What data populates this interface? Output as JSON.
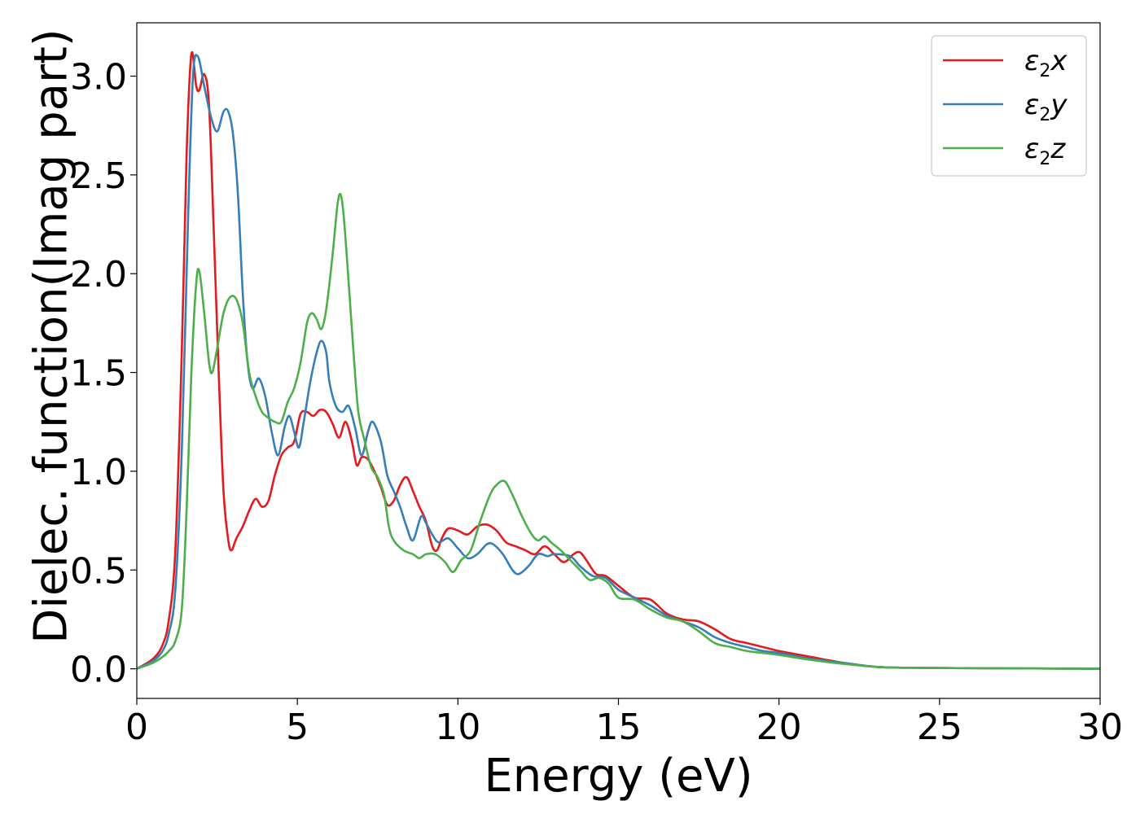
{
  "chart_data": {
    "type": "line",
    "xlabel": "Energy (eV)",
    "ylabel": "Dielec. function(Imag part)",
    "xlim": [
      0,
      30
    ],
    "ylim": [
      -0.15,
      3.27
    ],
    "xticks": [
      0,
      5,
      10,
      15,
      20,
      25,
      30
    ],
    "xtick_labels": [
      "0",
      "5",
      "10",
      "15",
      "20",
      "25",
      "30"
    ],
    "yticks": [
      0.0,
      0.5,
      1.0,
      1.5,
      2.0,
      2.5,
      3.0
    ],
    "ytick_labels": [
      "0.0",
      "0.5",
      "1.0",
      "1.5",
      "2.0",
      "2.5",
      "3.0"
    ],
    "grid": false,
    "legend_position": "top-right",
    "series": [
      {
        "name": "ε2x",
        "legend_main": "ε",
        "legend_sub": "2",
        "legend_var": "x",
        "color": "#e41a1c",
        "points": [
          [
            0,
            0
          ],
          [
            0.5,
            0.05
          ],
          [
            0.8,
            0.12
          ],
          [
            1.0,
            0.25
          ],
          [
            1.2,
            0.6
          ],
          [
            1.4,
            1.6
          ],
          [
            1.55,
            2.6
          ],
          [
            1.7,
            3.11
          ],
          [
            1.85,
            2.95
          ],
          [
            1.95,
            2.93
          ],
          [
            2.1,
            3.01
          ],
          [
            2.25,
            2.85
          ],
          [
            2.4,
            2.2
          ],
          [
            2.55,
            1.5
          ],
          [
            2.7,
            0.9
          ],
          [
            2.85,
            0.65
          ],
          [
            2.95,
            0.6
          ],
          [
            3.1,
            0.66
          ],
          [
            3.3,
            0.72
          ],
          [
            3.5,
            0.8
          ],
          [
            3.7,
            0.86
          ],
          [
            3.9,
            0.82
          ],
          [
            4.1,
            0.85
          ],
          [
            4.3,
            0.98
          ],
          [
            4.5,
            1.08
          ],
          [
            4.7,
            1.12
          ],
          [
            4.9,
            1.15
          ],
          [
            5.1,
            1.29
          ],
          [
            5.3,
            1.3
          ],
          [
            5.5,
            1.28
          ],
          [
            5.7,
            1.31
          ],
          [
            5.9,
            1.3
          ],
          [
            6.1,
            1.24
          ],
          [
            6.3,
            1.17
          ],
          [
            6.5,
            1.25
          ],
          [
            6.7,
            1.15
          ],
          [
            6.85,
            1.03
          ],
          [
            7.0,
            1.07
          ],
          [
            7.2,
            1.06
          ],
          [
            7.4,
            1.0
          ],
          [
            7.6,
            0.92
          ],
          [
            7.8,
            0.83
          ],
          [
            8.0,
            0.85
          ],
          [
            8.2,
            0.93
          ],
          [
            8.4,
            0.97
          ],
          [
            8.6,
            0.9
          ],
          [
            8.8,
            0.82
          ],
          [
            9.0,
            0.75
          ],
          [
            9.2,
            0.62
          ],
          [
            9.35,
            0.6
          ],
          [
            9.5,
            0.66
          ],
          [
            9.7,
            0.71
          ],
          [
            10.0,
            0.7
          ],
          [
            10.3,
            0.68
          ],
          [
            10.6,
            0.72
          ],
          [
            10.9,
            0.73
          ],
          [
            11.2,
            0.7
          ],
          [
            11.5,
            0.64
          ],
          [
            11.8,
            0.62
          ],
          [
            12.1,
            0.6
          ],
          [
            12.4,
            0.58
          ],
          [
            12.7,
            0.62
          ],
          [
            13.0,
            0.58
          ],
          [
            13.3,
            0.54
          ],
          [
            13.6,
            0.58
          ],
          [
            13.8,
            0.59
          ],
          [
            14.0,
            0.55
          ],
          [
            14.3,
            0.48
          ],
          [
            14.6,
            0.47
          ],
          [
            15.0,
            0.42
          ],
          [
            15.5,
            0.36
          ],
          [
            16.0,
            0.35
          ],
          [
            16.5,
            0.28
          ],
          [
            17.0,
            0.25
          ],
          [
            17.5,
            0.24
          ],
          [
            18.0,
            0.2
          ],
          [
            18.5,
            0.15
          ],
          [
            19.0,
            0.13
          ],
          [
            19.5,
            0.11
          ],
          [
            20.0,
            0.09
          ],
          [
            21.0,
            0.06
          ],
          [
            22.0,
            0.03
          ],
          [
            23.0,
            0.01
          ],
          [
            24.0,
            0.005
          ],
          [
            26.0,
            0.003
          ],
          [
            30.0,
            0.0
          ]
        ]
      },
      {
        "name": "ε2y",
        "legend_main": "ε",
        "legend_sub": "2",
        "legend_var": "y",
        "color": "#377eb8",
        "points": [
          [
            0,
            0
          ],
          [
            0.5,
            0.04
          ],
          [
            0.8,
            0.09
          ],
          [
            1.0,
            0.18
          ],
          [
            1.2,
            0.4
          ],
          [
            1.4,
            1.1
          ],
          [
            1.6,
            2.3
          ],
          [
            1.75,
            3.0
          ],
          [
            1.9,
            3.1
          ],
          [
            2.1,
            2.95
          ],
          [
            2.3,
            2.8
          ],
          [
            2.5,
            2.72
          ],
          [
            2.7,
            2.82
          ],
          [
            2.85,
            2.82
          ],
          [
            3.0,
            2.7
          ],
          [
            3.15,
            2.4
          ],
          [
            3.3,
            1.9
          ],
          [
            3.45,
            1.55
          ],
          [
            3.6,
            1.42
          ],
          [
            3.8,
            1.47
          ],
          [
            4.0,
            1.38
          ],
          [
            4.2,
            1.2
          ],
          [
            4.4,
            1.08
          ],
          [
            4.6,
            1.22
          ],
          [
            4.75,
            1.28
          ],
          [
            4.9,
            1.2
          ],
          [
            5.05,
            1.12
          ],
          [
            5.2,
            1.25
          ],
          [
            5.4,
            1.45
          ],
          [
            5.6,
            1.6
          ],
          [
            5.75,
            1.66
          ],
          [
            5.9,
            1.6
          ],
          [
            6.0,
            1.45
          ],
          [
            6.2,
            1.33
          ],
          [
            6.4,
            1.3
          ],
          [
            6.6,
            1.33
          ],
          [
            6.8,
            1.22
          ],
          [
            7.0,
            1.08
          ],
          [
            7.2,
            1.2
          ],
          [
            7.35,
            1.25
          ],
          [
            7.6,
            1.15
          ],
          [
            7.8,
            0.98
          ],
          [
            8.0,
            0.9
          ],
          [
            8.2,
            0.82
          ],
          [
            8.4,
            0.72
          ],
          [
            8.6,
            0.65
          ],
          [
            8.85,
            0.77
          ],
          [
            9.0,
            0.74
          ],
          [
            9.2,
            0.68
          ],
          [
            9.4,
            0.64
          ],
          [
            9.7,
            0.66
          ],
          [
            10.0,
            0.61
          ],
          [
            10.3,
            0.56
          ],
          [
            10.6,
            0.58
          ],
          [
            10.9,
            0.63
          ],
          [
            11.1,
            0.63
          ],
          [
            11.4,
            0.58
          ],
          [
            11.7,
            0.5
          ],
          [
            11.9,
            0.48
          ],
          [
            12.2,
            0.52
          ],
          [
            12.5,
            0.58
          ],
          [
            12.8,
            0.57
          ],
          [
            13.0,
            0.58
          ],
          [
            13.5,
            0.57
          ],
          [
            13.8,
            0.52
          ],
          [
            14.2,
            0.47
          ],
          [
            14.6,
            0.46
          ],
          [
            15.0,
            0.4
          ],
          [
            15.5,
            0.36
          ],
          [
            16.0,
            0.32
          ],
          [
            16.5,
            0.27
          ],
          [
            17.0,
            0.24
          ],
          [
            17.5,
            0.21
          ],
          [
            18.0,
            0.16
          ],
          [
            18.5,
            0.13
          ],
          [
            19.0,
            0.11
          ],
          [
            19.5,
            0.09
          ],
          [
            20.0,
            0.08
          ],
          [
            21.0,
            0.05
          ],
          [
            22.0,
            0.03
          ],
          [
            23.0,
            0.01
          ],
          [
            24.0,
            0.005
          ],
          [
            26.0,
            0.003
          ],
          [
            30.0,
            0.0
          ]
        ]
      },
      {
        "name": "ε2z",
        "legend_main": "ε",
        "legend_sub": "2",
        "legend_var": "z",
        "color": "#4daf4a",
        "points": [
          [
            0,
            0
          ],
          [
            0.5,
            0.03
          ],
          [
            0.8,
            0.06
          ],
          [
            1.0,
            0.09
          ],
          [
            1.2,
            0.14
          ],
          [
            1.4,
            0.3
          ],
          [
            1.55,
            0.8
          ],
          [
            1.7,
            1.5
          ],
          [
            1.85,
            1.95
          ],
          [
            1.95,
            2.01
          ],
          [
            2.1,
            1.8
          ],
          [
            2.25,
            1.55
          ],
          [
            2.35,
            1.5
          ],
          [
            2.5,
            1.62
          ],
          [
            2.7,
            1.8
          ],
          [
            2.9,
            1.88
          ],
          [
            3.1,
            1.87
          ],
          [
            3.3,
            1.75
          ],
          [
            3.5,
            1.5
          ],
          [
            3.7,
            1.38
          ],
          [
            3.9,
            1.3
          ],
          [
            4.1,
            1.27
          ],
          [
            4.3,
            1.25
          ],
          [
            4.5,
            1.25
          ],
          [
            4.7,
            1.35
          ],
          [
            4.9,
            1.42
          ],
          [
            5.1,
            1.55
          ],
          [
            5.3,
            1.75
          ],
          [
            5.45,
            1.8
          ],
          [
            5.6,
            1.77
          ],
          [
            5.75,
            1.72
          ],
          [
            5.9,
            1.82
          ],
          [
            6.1,
            2.1
          ],
          [
            6.25,
            2.35
          ],
          [
            6.35,
            2.4
          ],
          [
            6.45,
            2.28
          ],
          [
            6.6,
            1.95
          ],
          [
            6.75,
            1.6
          ],
          [
            6.9,
            1.3
          ],
          [
            7.1,
            1.15
          ],
          [
            7.3,
            1.02
          ],
          [
            7.5,
            0.97
          ],
          [
            7.7,
            0.88
          ],
          [
            7.85,
            0.72
          ],
          [
            8.0,
            0.65
          ],
          [
            8.3,
            0.6
          ],
          [
            8.6,
            0.58
          ],
          [
            8.8,
            0.56
          ],
          [
            9.0,
            0.58
          ],
          [
            9.3,
            0.58
          ],
          [
            9.6,
            0.54
          ],
          [
            9.85,
            0.49
          ],
          [
            10.1,
            0.55
          ],
          [
            10.4,
            0.6
          ],
          [
            10.7,
            0.75
          ],
          [
            11.0,
            0.88
          ],
          [
            11.2,
            0.93
          ],
          [
            11.45,
            0.95
          ],
          [
            11.7,
            0.88
          ],
          [
            12.0,
            0.77
          ],
          [
            12.3,
            0.68
          ],
          [
            12.5,
            0.65
          ],
          [
            12.7,
            0.67
          ],
          [
            12.9,
            0.64
          ],
          [
            13.2,
            0.6
          ],
          [
            13.5,
            0.55
          ],
          [
            13.8,
            0.5
          ],
          [
            14.1,
            0.45
          ],
          [
            14.4,
            0.46
          ],
          [
            14.7,
            0.43
          ],
          [
            15.0,
            0.36
          ],
          [
            15.5,
            0.35
          ],
          [
            16.0,
            0.3
          ],
          [
            16.5,
            0.26
          ],
          [
            17.0,
            0.24
          ],
          [
            17.5,
            0.19
          ],
          [
            18.0,
            0.13
          ],
          [
            18.5,
            0.11
          ],
          [
            19.0,
            0.09
          ],
          [
            19.5,
            0.08
          ],
          [
            20.0,
            0.07
          ],
          [
            21.0,
            0.045
          ],
          [
            22.0,
            0.025
          ],
          [
            23.0,
            0.01
          ],
          [
            24.0,
            0.005
          ],
          [
            26.0,
            0.003
          ],
          [
            30.0,
            0.0
          ]
        ]
      }
    ]
  }
}
